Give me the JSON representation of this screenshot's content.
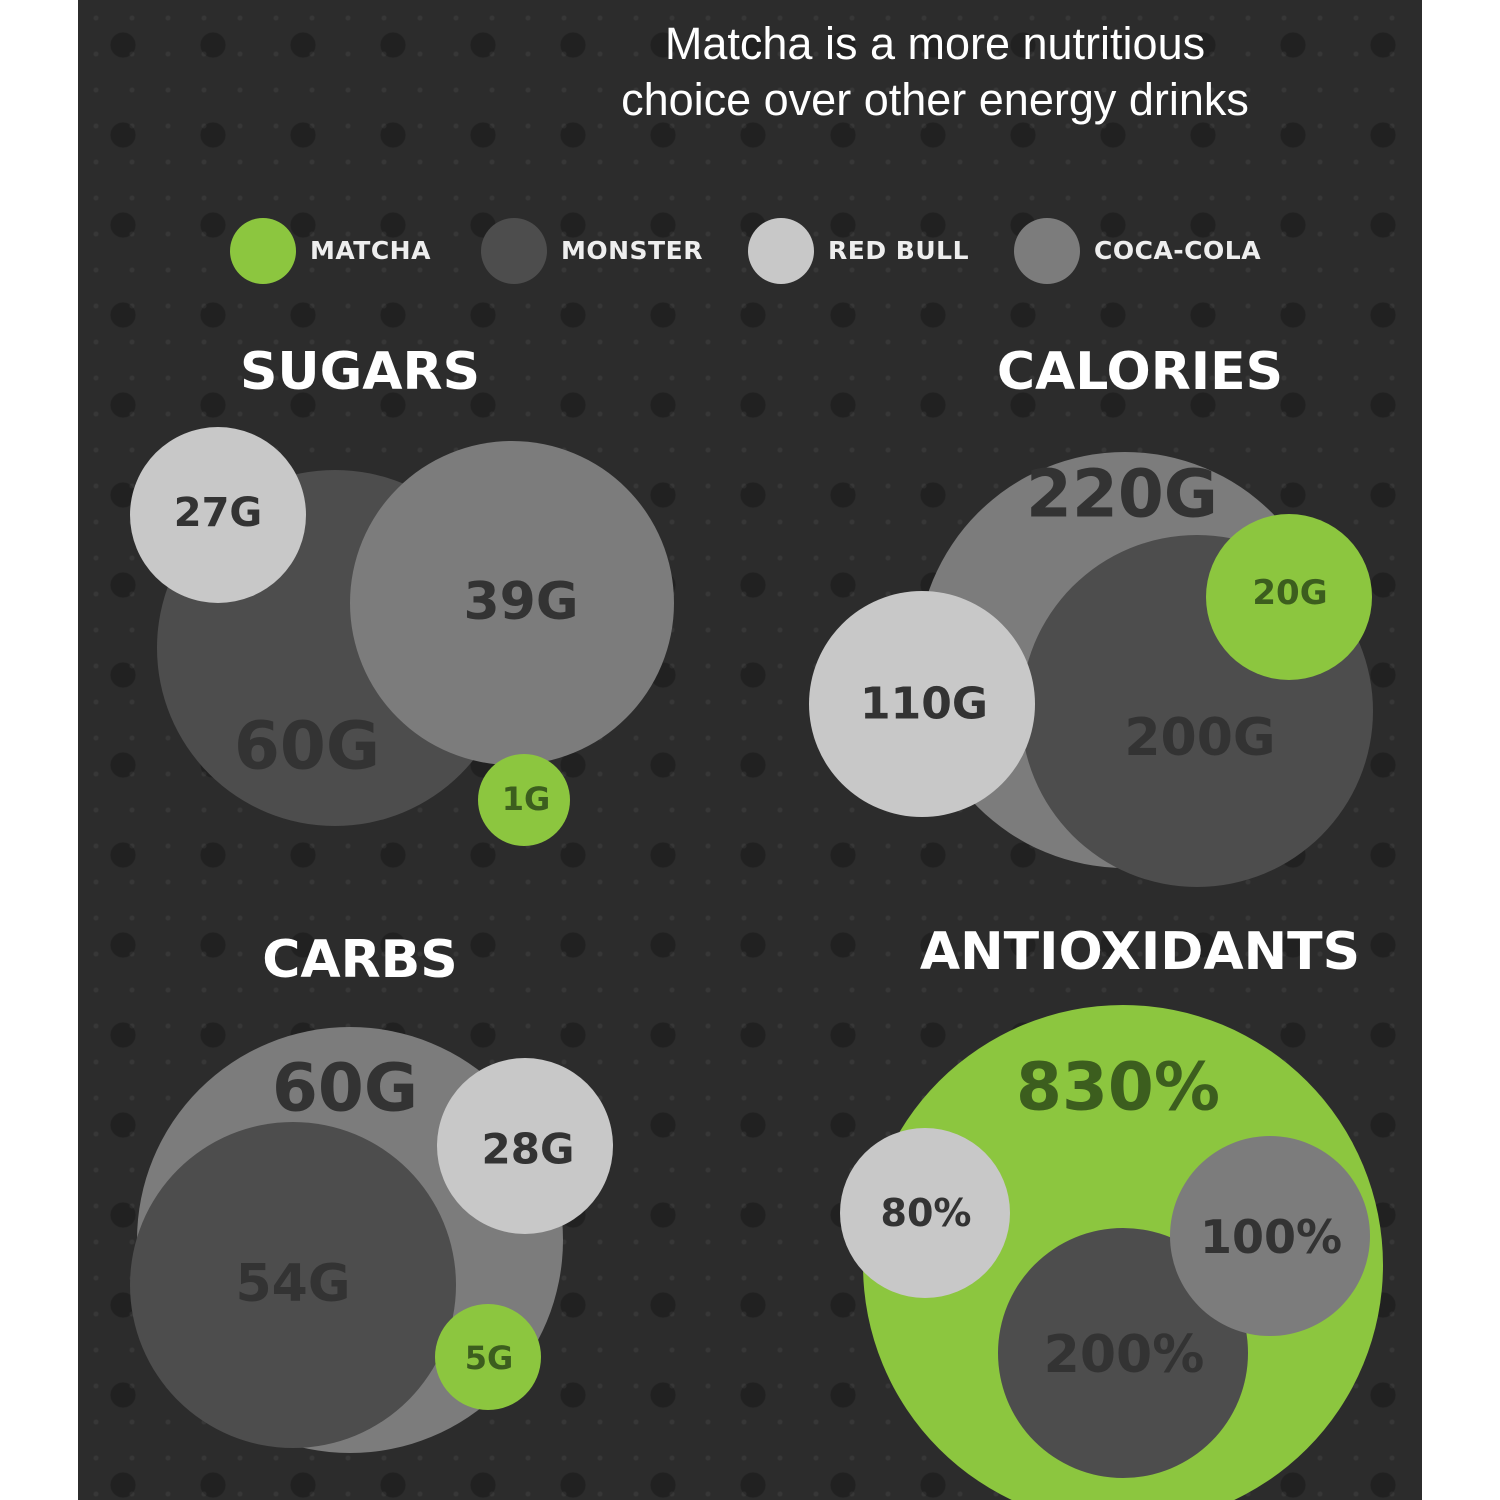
{
  "headline": {
    "line1": "Matcha is a more nutritious",
    "line2": "choice over other energy drinks"
  },
  "legend": [
    {
      "name": "MATCHA",
      "color": "#8cc63f"
    },
    {
      "name": "MONSTER",
      "color": "#4d4d4d"
    },
    {
      "name": "RED BULL",
      "color": "#c8c8c8"
    },
    {
      "name": "COCA-COLA",
      "color": "#7c7c7c"
    }
  ],
  "colors": {
    "background": "#2c2c2c",
    "matcha": "#8cc63f",
    "monster": "#4d4d4d",
    "red_bull": "#c8c8c8",
    "coca_cola": "#7c7c7c",
    "label_dark": "#333333",
    "label_green": "#3c5e1e"
  },
  "chart_data": [
    {
      "type": "bubble",
      "title": "SUGARS",
      "series": [
        {
          "name": "MONSTER",
          "value": 60,
          "label": "60G"
        },
        {
          "name": "COCA-COLA",
          "value": 39,
          "label": "39G"
        },
        {
          "name": "RED BULL",
          "value": 27,
          "label": "27G"
        },
        {
          "name": "MATCHA",
          "value": 1,
          "label": "1G"
        }
      ]
    },
    {
      "type": "bubble",
      "title": "CALORIES",
      "series": [
        {
          "name": "COCA-COLA",
          "value": 220,
          "label": "220G"
        },
        {
          "name": "MONSTER",
          "value": 200,
          "label": "200G"
        },
        {
          "name": "RED BULL",
          "value": 110,
          "label": "110G"
        },
        {
          "name": "MATCHA",
          "value": 20,
          "label": "20G"
        }
      ]
    },
    {
      "type": "bubble",
      "title": "CARBS",
      "series": [
        {
          "name": "COCA-COLA",
          "value": 60,
          "label": "60G"
        },
        {
          "name": "MONSTER",
          "value": 54,
          "label": "54G"
        },
        {
          "name": "RED BULL",
          "value": 28,
          "label": "28G"
        },
        {
          "name": "MATCHA",
          "value": 5,
          "label": "5G"
        }
      ]
    },
    {
      "type": "bubble",
      "title": "ANTIOXIDANTS",
      "series": [
        {
          "name": "MATCHA",
          "value": 830,
          "label": "830%"
        },
        {
          "name": "MONSTER",
          "value": 200,
          "label": "200%"
        },
        {
          "name": "COCA-COLA",
          "value": 100,
          "label": "100%"
        },
        {
          "name": "RED BULL",
          "value": 80,
          "label": "80%"
        }
      ]
    }
  ]
}
